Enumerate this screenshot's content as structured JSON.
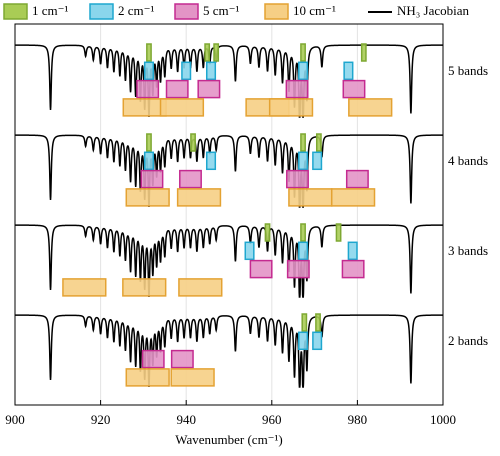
{
  "chart_data": {
    "type": "spectrum",
    "xlabel": "Wavenumber (cm⁻¹)",
    "xlim": [
      900,
      1000
    ],
    "xticks": [
      900,
      920,
      940,
      960,
      980,
      1000
    ],
    "grid": true,
    "series": [
      {
        "name": "1 cm⁻¹",
        "width": 1,
        "color": "#a9cc55",
        "edge": "#7ea832"
      },
      {
        "name": "2 cm⁻¹",
        "width": 2,
        "color": "#8ad6ec",
        "edge": "#1ea7cf"
      },
      {
        "name": "5 cm⁻¹",
        "width": 5,
        "color": "#e394c6",
        "edge": "#c42a90"
      },
      {
        "name": "10 cm⁻¹",
        "width": 10,
        "color": "#f6cf85",
        "edge": "#e4a232"
      }
    ],
    "jacobian": {
      "name": "NH₃ Jacobian",
      "color": "#000000",
      "x": [
        908.3,
        916.5,
        918.3,
        920.0,
        921.6,
        923.1,
        924.5,
        925.8,
        927.0,
        928.2,
        929.3,
        930.3,
        931.3,
        932.2,
        933.1,
        934.0,
        935.0,
        936.5,
        938.0,
        939.5,
        941.0,
        942.5,
        944.0,
        945.5,
        947.0,
        951.5,
        955.0,
        957.0,
        959.0,
        960.8,
        962.5,
        964.0,
        965.3,
        966.5,
        967.3,
        968.2,
        971.7,
        992.5
      ],
      "depth": [
        0.9,
        0.15,
        0.2,
        0.25,
        0.3,
        0.35,
        0.4,
        0.45,
        0.6,
        0.65,
        0.7,
        0.8,
        0.9,
        0.6,
        0.5,
        0.45,
        0.4,
        0.3,
        0.35,
        0.3,
        0.3,
        0.35,
        0.3,
        0.25,
        0.2,
        0.5,
        0.25,
        0.3,
        0.35,
        0.4,
        0.5,
        0.6,
        0.8,
        1.0,
        1.0,
        0.7,
        0.3,
        0.95
      ]
    },
    "panels": [
      {
        "label": "5 bands",
        "centers": [
          [
            931.3,
            944.9,
            947.0,
            967.3,
            981.5
          ],
          [
            931.3,
            940.0,
            945.8,
            967.3,
            977.9
          ],
          [
            931.0,
            937.9,
            945.3,
            965.9,
            979.2
          ],
          [
            930.3,
            939.0,
            959.0,
            964.5,
            983.0
          ]
        ]
      },
      {
        "label": "4 bands",
        "centers": [
          [
            931.3,
            941.6,
            967.3,
            971.0
          ],
          [
            931.3,
            945.8,
            967.3,
            970.6
          ],
          [
            932.0,
            941.0,
            966.0,
            980.0
          ],
          [
            931.0,
            943.0,
            969.0,
            979.0
          ]
        ]
      },
      {
        "label": "3 bands",
        "centers": [
          [
            959.0,
            967.3,
            975.6
          ],
          [
            954.8,
            967.3,
            978.9
          ],
          [
            957.5,
            966.2,
            979.0
          ],
          [
            916.2,
            930.2,
            943.3
          ]
        ]
      },
      {
        "label": "2 bands",
        "centers": [
          [
            967.6,
            970.8
          ],
          [
            967.3,
            970.6
          ],
          [
            932.3,
            939.1
          ],
          [
            931.0,
            941.5
          ]
        ]
      }
    ]
  }
}
